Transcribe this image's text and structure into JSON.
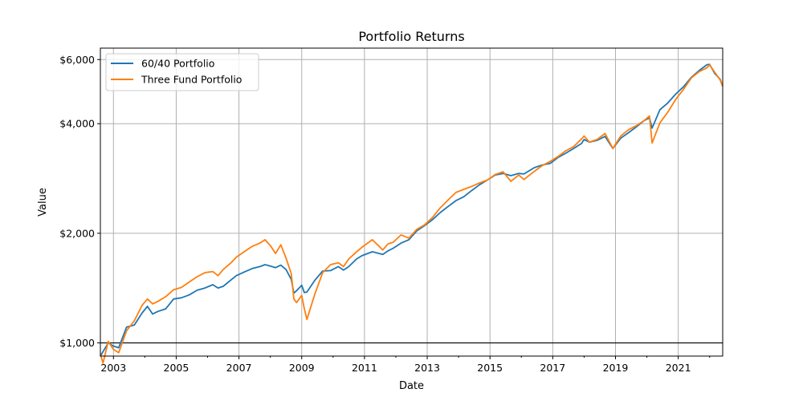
{
  "chart_data": {
    "type": "line",
    "title": "Portfolio Returns",
    "xlabel": "Date",
    "ylabel": "Value",
    "y_scale": "log",
    "xlim": [
      "2002-08",
      "2022-06"
    ],
    "ylim": [
      920,
      6450
    ],
    "grid": true,
    "legend_position": "top-left",
    "x_ticks": [
      "2003",
      "2005",
      "2007",
      "2009",
      "2011",
      "2013",
      "2015",
      "2017",
      "2019",
      "2021"
    ],
    "y_ticks": [
      {
        "value": 1000,
        "label": "$1,000"
      },
      {
        "value": 2000,
        "label": "$2,000"
      },
      {
        "value": 4000,
        "label": "$4,000"
      },
      {
        "value": 6000,
        "label": "$6,000"
      }
    ],
    "reference_line": {
      "value": 1000,
      "color": "#000000"
    },
    "series": [
      {
        "name": "60/40 Portfolio",
        "color": "#1f77b4",
        "x": [
          "2002-08",
          "2002-11",
          "2003-01",
          "2003-03",
          "2003-06",
          "2003-09",
          "2003-12",
          "2004-02",
          "2004-04",
          "2004-06",
          "2004-09",
          "2004-12",
          "2005-03",
          "2005-06",
          "2005-09",
          "2005-12",
          "2006-03",
          "2006-05",
          "2006-07",
          "2006-10",
          "2006-12",
          "2007-03",
          "2007-06",
          "2007-09",
          "2007-11",
          "2008-01",
          "2008-03",
          "2008-05",
          "2008-07",
          "2008-09",
          "2008-10",
          "2008-11",
          "2009-01",
          "2009-02",
          "2009-03",
          "2009-06",
          "2009-09",
          "2009-12",
          "2010-03",
          "2010-05",
          "2010-07",
          "2010-10",
          "2010-12",
          "2011-04",
          "2011-08",
          "2011-10",
          "2011-12",
          "2012-03",
          "2012-06",
          "2012-09",
          "2012-12",
          "2013-03",
          "2013-06",
          "2013-09",
          "2013-12",
          "2014-03",
          "2014-06",
          "2014-09",
          "2014-12",
          "2015-03",
          "2015-06",
          "2015-09",
          "2015-12",
          "2016-02",
          "2016-06",
          "2016-09",
          "2016-12",
          "2017-03",
          "2017-06",
          "2017-09",
          "2017-12",
          "2018-01",
          "2018-03",
          "2018-06",
          "2018-09",
          "2018-12",
          "2019-03",
          "2019-06",
          "2019-09",
          "2019-12",
          "2020-02",
          "2020-03",
          "2020-06",
          "2020-09",
          "2020-12",
          "2021-03",
          "2021-06",
          "2021-09",
          "2021-12",
          "2022-01",
          "2022-03",
          "2022-05",
          "2022-06"
        ],
        "y": [
          920,
          1000,
          980,
          970,
          1105,
          1120,
          1210,
          1260,
          1200,
          1220,
          1240,
          1320,
          1330,
          1355,
          1395,
          1415,
          1445,
          1415,
          1430,
          1490,
          1530,
          1565,
          1600,
          1620,
          1640,
          1625,
          1610,
          1635,
          1590,
          1495,
          1370,
          1390,
          1440,
          1375,
          1380,
          1485,
          1575,
          1580,
          1620,
          1585,
          1620,
          1700,
          1735,
          1780,
          1750,
          1790,
          1820,
          1880,
          1920,
          2030,
          2100,
          2180,
          2280,
          2370,
          2460,
          2520,
          2620,
          2720,
          2800,
          2890,
          2920,
          2880,
          2920,
          2910,
          3030,
          3080,
          3110,
          3230,
          3320,
          3420,
          3530,
          3620,
          3560,
          3600,
          3690,
          3420,
          3650,
          3780,
          3920,
          4080,
          4150,
          3890,
          4370,
          4560,
          4820,
          5050,
          5360,
          5600,
          5810,
          5820,
          5490,
          5300,
          5070
        ]
      },
      {
        "name": "Three Fund Portfolio",
        "color": "#ff7f0e",
        "x": [
          "2002-08",
          "2002-09",
          "2002-11",
          "2003-01",
          "2003-03",
          "2003-06",
          "2003-09",
          "2003-12",
          "2004-02",
          "2004-04",
          "2004-06",
          "2004-09",
          "2004-12",
          "2005-03",
          "2005-06",
          "2005-09",
          "2005-12",
          "2006-03",
          "2006-05",
          "2006-07",
          "2006-10",
          "2006-12",
          "2007-03",
          "2007-06",
          "2007-09",
          "2007-11",
          "2008-01",
          "2008-03",
          "2008-05",
          "2008-07",
          "2008-09",
          "2008-10",
          "2008-11",
          "2009-01",
          "2009-02",
          "2009-03",
          "2009-06",
          "2009-09",
          "2009-12",
          "2010-03",
          "2010-05",
          "2010-07",
          "2010-10",
          "2010-12",
          "2011-04",
          "2011-08",
          "2011-10",
          "2011-12",
          "2012-03",
          "2012-06",
          "2012-09",
          "2012-12",
          "2013-03",
          "2013-06",
          "2013-09",
          "2013-12",
          "2014-03",
          "2014-06",
          "2014-09",
          "2014-12",
          "2015-03",
          "2015-06",
          "2015-09",
          "2015-12",
          "2016-02",
          "2016-06",
          "2016-09",
          "2016-12",
          "2017-03",
          "2017-06",
          "2017-09",
          "2017-12",
          "2018-01",
          "2018-03",
          "2018-06",
          "2018-09",
          "2018-12",
          "2019-03",
          "2019-06",
          "2019-09",
          "2019-12",
          "2020-02",
          "2020-03",
          "2020-06",
          "2020-09",
          "2020-12",
          "2021-03",
          "2021-06",
          "2021-09",
          "2021-12",
          "2022-01",
          "2022-03",
          "2022-05",
          "2022-06"
        ],
        "y": [
          930,
          880,
          1010,
          960,
          940,
          1080,
          1150,
          1270,
          1320,
          1280,
          1300,
          1340,
          1400,
          1420,
          1470,
          1520,
          1560,
          1570,
          1530,
          1590,
          1660,
          1720,
          1780,
          1840,
          1880,
          1920,
          1850,
          1760,
          1860,
          1710,
          1550,
          1320,
          1290,
          1350,
          1240,
          1160,
          1360,
          1560,
          1640,
          1660,
          1620,
          1700,
          1780,
          1830,
          1920,
          1800,
          1870,
          1890,
          1980,
          1940,
          2050,
          2110,
          2210,
          2350,
          2470,
          2590,
          2640,
          2690,
          2750,
          2800,
          2900,
          2950,
          2780,
          2890,
          2810,
          2960,
          3070,
          3150,
          3250,
          3370,
          3460,
          3630,
          3700,
          3560,
          3620,
          3760,
          3420,
          3700,
          3850,
          3950,
          4080,
          4200,
          3540,
          4020,
          4300,
          4660,
          4970,
          5340,
          5560,
          5700,
          5800,
          5530,
          5280,
          5070
        ]
      }
    ]
  }
}
